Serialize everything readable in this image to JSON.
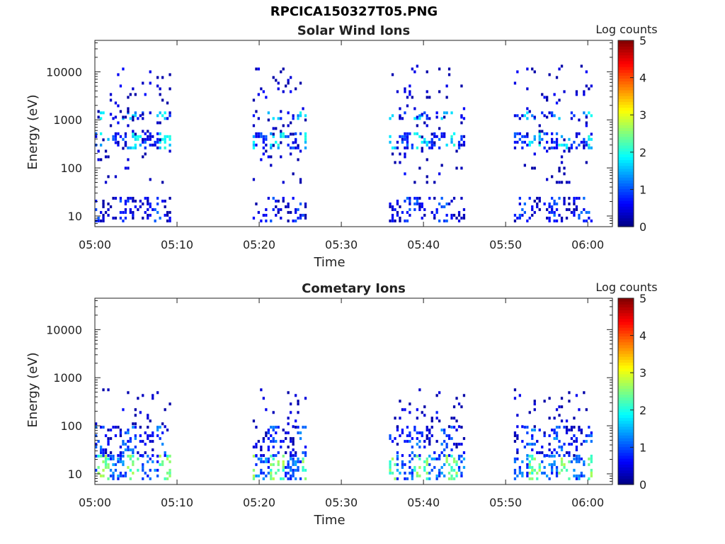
{
  "figure": {
    "title": "RPCICA150327T05.PNG"
  },
  "chart_data": [
    {
      "type": "heatmap",
      "title": "Solar Wind Ions",
      "xlabel": "Time",
      "ylabel": "Energy (eV)",
      "x_ticks": [
        "05:00",
        "05:10",
        "05:20",
        "05:30",
        "05:40",
        "05:50",
        "06:00"
      ],
      "x_range_minutes": [
        0,
        63
      ],
      "y_scale": "log",
      "y_ticks": [
        10,
        100,
        1000,
        10000
      ],
      "y_tick_labels": [
        "10",
        "100",
        "1000",
        "10000"
      ],
      "y_range": [
        6,
        45000
      ],
      "colorbar": {
        "label": "Log counts",
        "ticks": [
          0,
          1,
          2,
          3,
          4,
          5
        ],
        "range": [
          0,
          5
        ],
        "colormap": "jet"
      },
      "active_windows_minutes": [
        [
          0,
          9.3
        ],
        [
          19.2,
          25.7
        ],
        [
          35.8,
          44.8
        ],
        [
          51.0,
          60.5
        ]
      ],
      "features": [
        {
          "band_eV": [
            250,
            550
          ],
          "level": 1.7,
          "description": "moderate band near 300–500 eV at start of each window"
        },
        {
          "band_eV": [
            1100,
            1500
          ],
          "level": 1.6,
          "description": "band near 1.2 keV"
        },
        {
          "band_eV": [
            8,
            25
          ],
          "level": 0.8,
          "description": "low-energy columns"
        },
        {
          "band_eV": [
            50,
            14000
          ],
          "level": 0.3,
          "description": "sparse scattered counts"
        }
      ]
    },
    {
      "type": "heatmap",
      "title": "Cometary Ions",
      "xlabel": "Time",
      "ylabel": "Energy (eV)",
      "x_ticks": [
        "05:00",
        "05:10",
        "05:20",
        "05:30",
        "05:40",
        "05:50",
        "06:00"
      ],
      "x_range_minutes": [
        0,
        63
      ],
      "y_scale": "log",
      "y_ticks": [
        10,
        100,
        1000,
        10000
      ],
      "y_tick_labels": [
        "10",
        "100",
        "1000",
        "10000"
      ],
      "y_range": [
        6,
        45000
      ],
      "colorbar": {
        "label": "Log counts",
        "ticks": [
          0,
          1,
          2,
          3,
          4,
          5
        ],
        "range": [
          0,
          5
        ],
        "colormap": "jet"
      },
      "active_windows_minutes": [
        [
          0,
          9.3
        ],
        [
          19.2,
          25.7
        ],
        [
          35.8,
          44.8
        ],
        [
          51.0,
          60.5
        ]
      ],
      "features": [
        {
          "band_eV": [
            8,
            25
          ],
          "level": 2.4,
          "description": "strong low-energy columns"
        },
        {
          "band_eV": [
            25,
            100
          ],
          "level": 1.0,
          "description": "moderate counts 25–100 eV"
        },
        {
          "band_eV": [
            100,
            600
          ],
          "level": 0.4,
          "description": "sparse counts up to ~600 eV"
        }
      ]
    }
  ]
}
